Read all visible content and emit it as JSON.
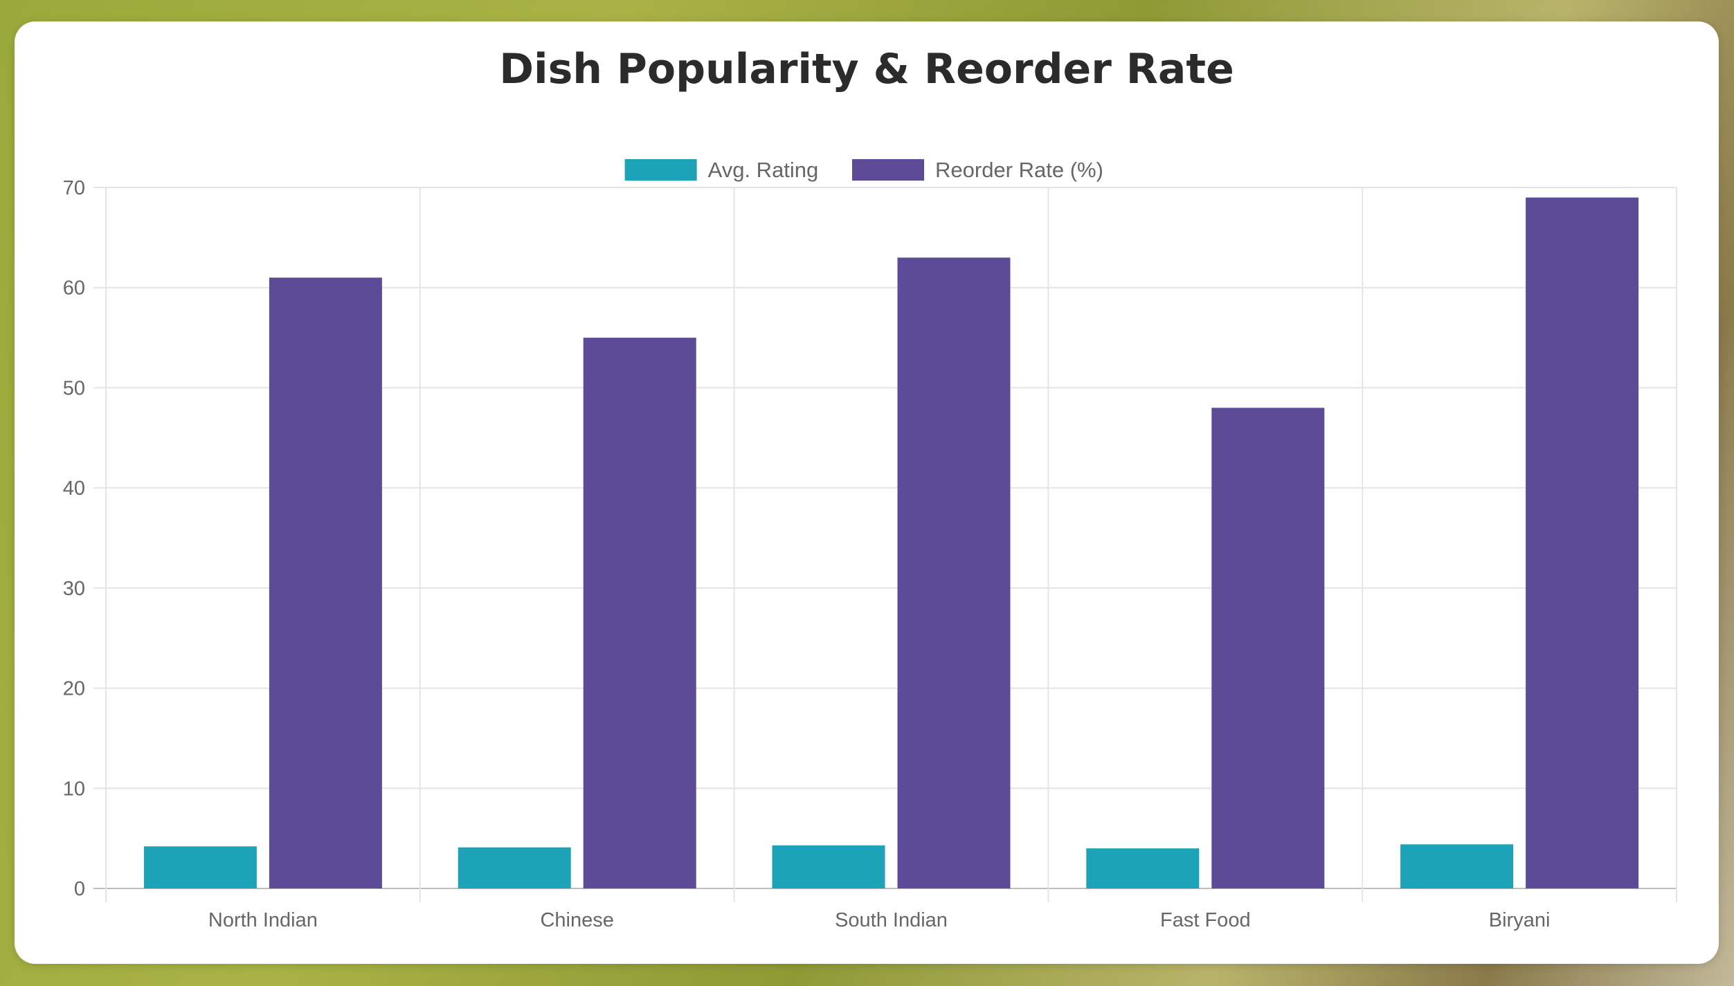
{
  "chart_data": {
    "type": "bar",
    "title": "Dish Popularity & Reorder Rate",
    "categories": [
      "North Indian",
      "Chinese",
      "South Indian",
      "Fast Food",
      "Biryani"
    ],
    "series": [
      {
        "name": "Avg. Rating",
        "color": "#1ca3b8",
        "values": [
          4.2,
          4.1,
          4.3,
          4.0,
          4.4
        ]
      },
      {
        "name": "Reorder Rate (%)",
        "color": "#5d4b98",
        "values": [
          61,
          55,
          63,
          48,
          69
        ]
      }
    ],
    "yticks": [
      "0",
      "10",
      "20",
      "30",
      "40",
      "50",
      "60",
      "70"
    ],
    "ylim": [
      0,
      70
    ],
    "grid": true,
    "legend_position": "top-center"
  }
}
